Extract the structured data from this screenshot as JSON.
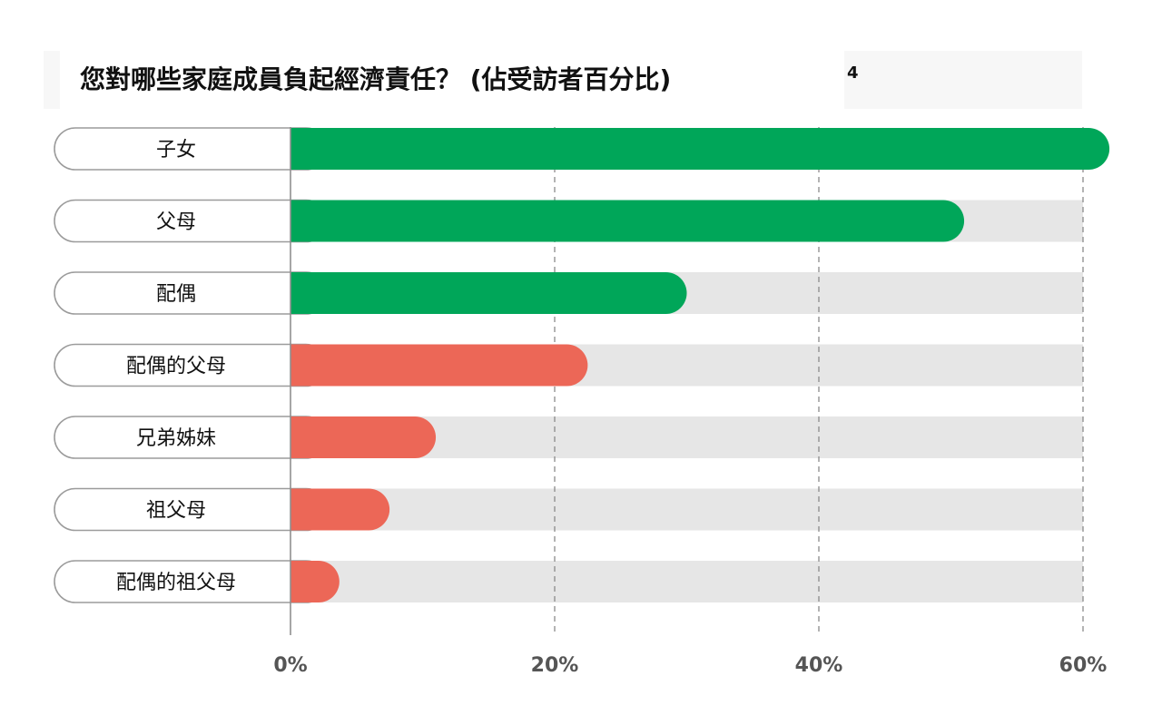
{
  "chart_data": {
    "type": "bar",
    "orientation": "horizontal",
    "title": "您對哪些家庭成員負起經濟責任？ (佔受訪者百分比)",
    "footnote": "4",
    "categories": [
      "子女",
      "父母",
      "配偶",
      "配偶的父母",
      "兄弟姊妹",
      "祖父母",
      "配偶的祖父母"
    ],
    "values": [
      62,
      51,
      30,
      22.5,
      11,
      7.5,
      3.7
    ],
    "unit": "%",
    "xlim": [
      0,
      60
    ],
    "ticks": [
      {
        "value": 0,
        "label": "0%"
      },
      {
        "value": 20,
        "label": "20%"
      },
      {
        "value": 40,
        "label": "40%"
      },
      {
        "value": 60,
        "label": "60%"
      }
    ],
    "grid": true,
    "colors": {
      "high": "#00a659",
      "low": "#ec6757",
      "track": "#e6e6e6",
      "grid": "#8a8a8a",
      "axis": "#8f8f8f",
      "label_border": "#9b9b9b"
    },
    "bar_colors": [
      "#00a659",
      "#00a659",
      "#00a659",
      "#ec6757",
      "#ec6757",
      "#ec6757",
      "#ec6757"
    ]
  }
}
